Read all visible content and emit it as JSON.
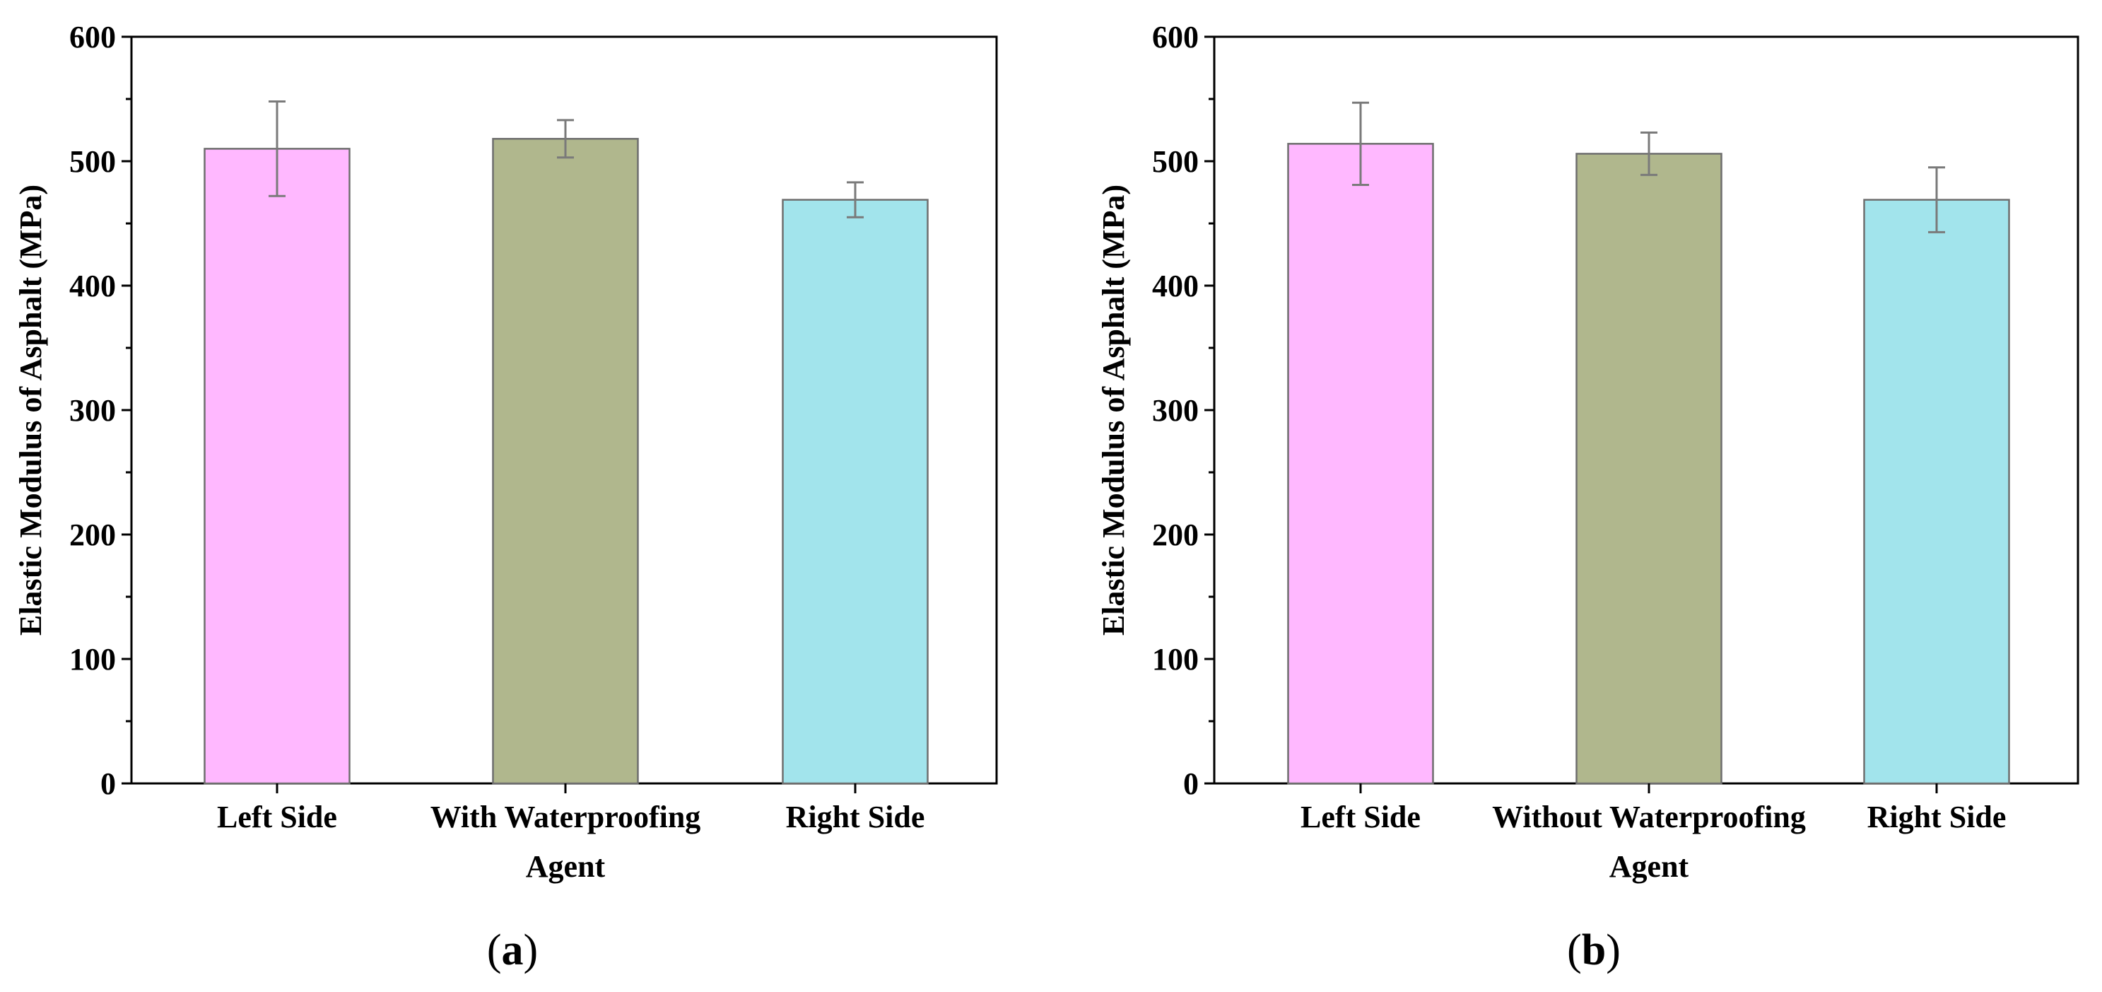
{
  "chart_data": [
    {
      "type": "bar",
      "panel_label": "a",
      "ylabel": "Elastic Modulus of Asphalt (MPa)",
      "ylim": [
        0,
        600
      ],
      "yticks": [
        0,
        100,
        200,
        300,
        400,
        500,
        600
      ],
      "categories": [
        [
          "Left Side"
        ],
        [
          "With Waterproofing",
          "Agent"
        ],
        [
          "Right Side"
        ]
      ],
      "values": [
        510,
        518,
        469
      ],
      "errors": [
        38,
        15,
        14
      ],
      "colors": [
        "#ffb8ff",
        "#b0b78d",
        "#a2e4ec"
      ]
    },
    {
      "type": "bar",
      "panel_label": "b",
      "ylabel": "Elastic Modulus of Asphalt (MPa)",
      "ylim": [
        0,
        600
      ],
      "yticks": [
        0,
        100,
        200,
        300,
        400,
        500,
        600
      ],
      "categories": [
        [
          "Left Side"
        ],
        [
          "Without Waterproofing",
          "Agent"
        ],
        [
          "Right Side"
        ]
      ],
      "values": [
        514,
        506,
        469
      ],
      "errors": [
        33,
        17,
        26
      ],
      "colors": [
        "#ffb8ff",
        "#b0b78d",
        "#a2e4ec"
      ]
    }
  ]
}
